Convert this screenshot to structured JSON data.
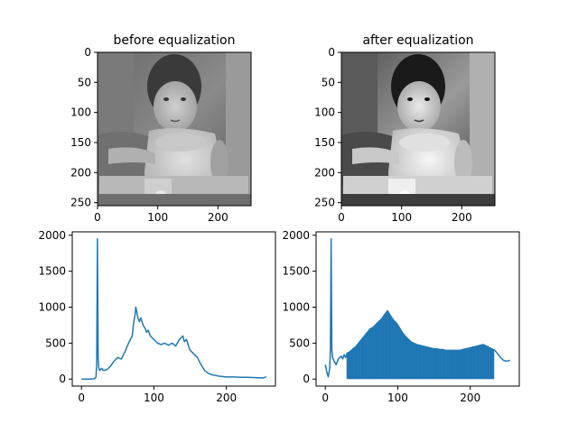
{
  "figure": {
    "colors": {
      "line": "#1f77b4",
      "axes": "#000000",
      "background": "#ffffff"
    }
  },
  "chart_data": [
    {
      "type": "image",
      "title": "before equalization",
      "xlim": [
        0,
        255
      ],
      "ylim": [
        255,
        0
      ],
      "xticks": [
        0,
        100,
        200
      ],
      "yticks": [
        0,
        50,
        100,
        150,
        200,
        250
      ],
      "image_description": "grayscale photo of a toddler in a stroller, low contrast",
      "contrast": 1.0
    },
    {
      "type": "image",
      "title": "after equalization",
      "xlim": [
        0,
        255
      ],
      "ylim": [
        255,
        0
      ],
      "xticks": [
        0,
        100,
        200
      ],
      "yticks": [
        0,
        50,
        100,
        150,
        200,
        250
      ],
      "image_description": "same grayscale photo after histogram equalization, higher contrast",
      "contrast": 1.6
    },
    {
      "type": "line",
      "series": [
        {
          "x": [
            0,
            10,
            18,
            20,
            21,
            22,
            23,
            24,
            25,
            28,
            30,
            35,
            40,
            45,
            50,
            55,
            60,
            65,
            70,
            72,
            74,
            75,
            76,
            77,
            78,
            80,
            82,
            85,
            88,
            90,
            92,
            95,
            100,
            105,
            110,
            115,
            120,
            125,
            130,
            135,
            138,
            140,
            142,
            145,
            148,
            150,
            155,
            160,
            165,
            170,
            175,
            180,
            190,
            200,
            210,
            220,
            230,
            240,
            250,
            255
          ],
          "y": [
            0,
            0,
            5,
            30,
            200,
            1950,
            300,
            150,
            120,
            150,
            120,
            130,
            180,
            250,
            300,
            280,
            380,
            500,
            600,
            780,
            900,
            1000,
            950,
            900,
            850,
            800,
            850,
            750,
            700,
            650,
            680,
            600,
            550,
            500,
            480,
            500,
            470,
            500,
            460,
            550,
            580,
            600,
            520,
            550,
            450,
            400,
            350,
            300,
            200,
            120,
            80,
            60,
            40,
            30,
            30,
            25,
            25,
            20,
            15,
            30
          ]
        }
      ],
      "xlim": [
        -12.75,
        267.75
      ],
      "ylim": [
        -97.5,
        2047.5
      ],
      "xticks": [
        0,
        100,
        200
      ],
      "yticks": [
        0,
        500,
        1000,
        1500,
        2000
      ]
    },
    {
      "type": "line",
      "series": [
        {
          "x": [
            0,
            2,
            4,
            6,
            7,
            8,
            9,
            10,
            12,
            15,
            18,
            20,
            22,
            24,
            26,
            28,
            30,
            34,
            38,
            42,
            46,
            50,
            54,
            58,
            62,
            66,
            70,
            74,
            78,
            82,
            86,
            90,
            94,
            98,
            102,
            106,
            110,
            114,
            118,
            122,
            126,
            130,
            134,
            138,
            142,
            146,
            150,
            154,
            158,
            162,
            166,
            170,
            174,
            178,
            182,
            186,
            190,
            194,
            198,
            202,
            206,
            210,
            214,
            218,
            222,
            226,
            230,
            234,
            238,
            242,
            246,
            250,
            255
          ],
          "y": [
            200,
            100,
            30,
            150,
            400,
            1950,
            400,
            300,
            250,
            200,
            280,
            300,
            320,
            280,
            340,
            300,
            360,
            380,
            420,
            450,
            500,
            550,
            600,
            650,
            700,
            720,
            760,
            800,
            840,
            900,
            950,
            880,
            820,
            780,
            720,
            650,
            600,
            560,
            520,
            500,
            480,
            470,
            460,
            450,
            440,
            430,
            420,
            420,
            410,
            410,
            400,
            400,
            400,
            400,
            400,
            400,
            410,
            420,
            430,
            440,
            450,
            460,
            470,
            480,
            460,
            440,
            420,
            400,
            350,
            300,
            260,
            250,
            260
          ]
        }
      ],
      "xlim": [
        -12.75,
        267.75
      ],
      "ylim": [
        -97.5,
        2047.5
      ],
      "xticks": [
        0,
        100,
        200
      ],
      "yticks": [
        0,
        500,
        1000,
        1500,
        2000
      ]
    }
  ],
  "titles": [
    "before equalization",
    "after equalization"
  ]
}
